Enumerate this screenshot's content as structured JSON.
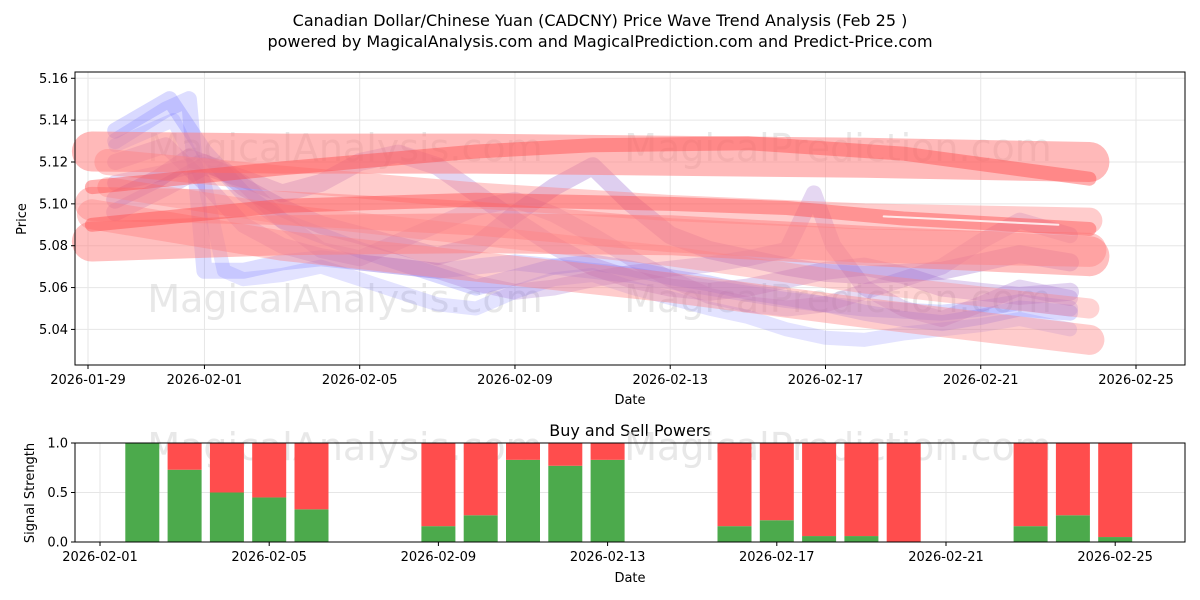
{
  "chart_data": [
    {
      "type": "line",
      "title": "Canadian Dollar/Chinese Yuan (CADCNY) Price Wave Trend Analysis (Feb 25 )",
      "subtitle": "powered by MagicalAnalysis.com and MagicalPrediction.com and Predict-Price.com",
      "xlabel": "Date",
      "ylabel": "Price",
      "xlim": [
        "2026-01-29",
        "2026-02-25"
      ],
      "ylim": [
        5.023,
        5.163
      ],
      "x_ticks": [
        "2026-01-29",
        "2026-02-01",
        "2026-02-05",
        "2026-02-09",
        "2026-02-13",
        "2026-02-17",
        "2026-02-21",
        "2026-02-25"
      ],
      "y_ticks": [
        "5.04",
        "5.06",
        "5.08",
        "5.10",
        "5.12",
        "5.14",
        "5.16"
      ],
      "grid": true,
      "watermarks": [
        "MagicalAnalysis.com",
        "MagicalPrediction.com",
        "MagicalAnalysis.com",
        "MagicalPrediction.com"
      ],
      "series": [
        {
          "name": "blue-wave-1",
          "color": "#6666ff",
          "width": 16,
          "opacity": 0.25,
          "x": [
            0.7,
            2.1,
            3.0,
            4.0,
            5.0,
            6.0,
            7.0,
            8.0,
            9.0,
            10.0,
            11.0,
            12.0,
            13.0,
            14.0,
            15.0,
            16.0,
            17.0,
            18.0,
            19.0,
            20.0,
            21.0,
            22.0,
            23.0,
            24.0,
            25.3
          ],
          "y": [
            5.135,
            5.15,
            5.125,
            5.105,
            5.092,
            5.085,
            5.078,
            5.072,
            5.066,
            5.06,
            5.065,
            5.07,
            5.072,
            5.069,
            5.065,
            5.062,
            5.058,
            5.055,
            5.052,
            5.048,
            5.045,
            5.043,
            5.046,
            5.05,
            5.048
          ]
        },
        {
          "name": "blue-wave-2",
          "color": "#6666ff",
          "width": 16,
          "opacity": 0.22,
          "x": [
            0.7,
            2.0,
            2.6,
            3.0,
            4.0,
            5.0,
            6.0,
            7.0,
            8.0,
            9.0,
            10.0,
            11.0,
            12.0,
            13.0,
            14.0,
            15.0,
            16.0,
            17.0,
            18.0,
            19.0,
            20.0,
            21.0,
            22.0,
            23.0,
            24.0,
            25.3
          ],
          "y": [
            5.13,
            5.145,
            5.15,
            5.068,
            5.068,
            5.072,
            5.074,
            5.072,
            5.07,
            5.068,
            5.07,
            5.072,
            5.07,
            5.068,
            5.066,
            5.063,
            5.06,
            5.057,
            5.054,
            5.052,
            5.05,
            5.049,
            5.048,
            5.05,
            5.053,
            5.05
          ]
        },
        {
          "name": "blue-wave-3",
          "color": "#6666ff",
          "width": 14,
          "opacity": 0.18,
          "x": [
            0.7,
            2.2,
            3.0,
            3.5,
            4.0,
            5.0,
            6.0,
            7.0,
            8.0,
            9.0,
            10.0,
            11.0,
            12.0,
            13.0,
            14.0,
            15.0,
            16.0,
            17.0,
            18.0,
            19.0,
            20.0,
            21.0,
            22.0,
            23.0,
            24.0,
            25.3
          ],
          "y": [
            5.128,
            5.14,
            5.11,
            5.068,
            5.064,
            5.066,
            5.07,
            5.064,
            5.058,
            5.052,
            5.05,
            5.058,
            5.064,
            5.066,
            5.06,
            5.055,
            5.05,
            5.046,
            5.04,
            5.036,
            5.035,
            5.038,
            5.04,
            5.042,
            5.045,
            5.04
          ]
        },
        {
          "name": "purple-wave-1",
          "color": "#9966cc",
          "width": 18,
          "opacity": 0.32,
          "x": [
            0.7,
            1.8,
            2.6,
            3.5,
            4.0,
            5.0,
            6.0,
            7.0,
            8.0,
            9.0,
            10.0,
            11.0,
            12.0,
            13.0,
            14.0,
            15.0,
            16.0,
            17.0,
            18.0,
            19.0,
            20.0,
            21.0,
            22.0,
            23.0,
            24.0,
            25.3
          ],
          "y": [
            5.102,
            5.112,
            5.122,
            5.116,
            5.108,
            5.098,
            5.09,
            5.085,
            5.08,
            5.075,
            5.08,
            5.095,
            5.108,
            5.118,
            5.1,
            5.085,
            5.078,
            5.074,
            5.07,
            5.067,
            5.066,
            5.067,
            5.068,
            5.072,
            5.076,
            5.072
          ]
        },
        {
          "name": "purple-wave-2",
          "color": "#9966cc",
          "width": 18,
          "opacity": 0.28,
          "x": [
            0.7,
            2.0,
            3.0,
            4.0,
            5.0,
            6.0,
            7.0,
            8.0,
            9.0,
            10.0,
            11.0,
            12.0,
            13.0,
            14.0,
            15.0,
            16.0,
            17.0,
            18.0,
            19.0,
            20.0,
            21.0,
            22.0,
            23.0,
            24.0,
            25.3
          ],
          "y": [
            5.096,
            5.108,
            5.118,
            5.112,
            5.105,
            5.11,
            5.12,
            5.124,
            5.118,
            5.105,
            5.092,
            5.08,
            5.07,
            5.064,
            5.06,
            5.058,
            5.06,
            5.064,
            5.068,
            5.07,
            5.066,
            5.06,
            5.058,
            5.056,
            5.058
          ]
        },
        {
          "name": "purple-wave-3",
          "color": "#9966cc",
          "width": 16,
          "opacity": 0.26,
          "x": [
            0.7,
            2.0,
            3.0,
            4.0,
            5.0,
            6.0,
            7.0,
            8.0,
            9.0,
            10.0,
            11.0,
            12.0,
            13.0,
            14.0,
            15.0,
            16.0,
            17.0,
            18.0,
            18.7,
            19.2,
            20.0,
            21.0,
            22.0,
            23.0,
            24.0,
            25.3
          ],
          "y": [
            5.12,
            5.128,
            5.11,
            5.09,
            5.08,
            5.075,
            5.072,
            5.07,
            5.068,
            5.062,
            5.058,
            5.06,
            5.064,
            5.067,
            5.069,
            5.071,
            5.074,
            5.078,
            5.105,
            5.08,
            5.06,
            5.05,
            5.045,
            5.052,
            5.06,
            5.055
          ]
        },
        {
          "name": "purple-wave-4",
          "color": "#9966cc",
          "width": 16,
          "opacity": 0.24,
          "x": [
            0.7,
            2.0,
            3.0,
            4.0,
            5.0,
            6.0,
            7.0,
            8.0,
            9.0,
            10.0,
            11.0,
            12.0,
            13.0,
            14.0,
            15.0,
            16.0,
            17.0,
            18.0,
            19.0,
            20.0,
            21.0,
            22.0,
            23.0,
            24.0,
            25.3
          ],
          "y": [
            5.11,
            5.115,
            5.12,
            5.11,
            5.092,
            5.078,
            5.074,
            5.082,
            5.09,
            5.098,
            5.102,
            5.095,
            5.085,
            5.074,
            5.064,
            5.056,
            5.052,
            5.05,
            5.052,
            5.058,
            5.064,
            5.07,
            5.082,
            5.092,
            5.085
          ]
        },
        {
          "name": "red-band-1",
          "color": "#ff8080",
          "width": 40,
          "opacity": 0.55,
          "x": [
            0.1,
            5.0,
            10.0,
            15.0,
            20.0,
            25.8
          ],
          "y": [
            5.125,
            5.124,
            5.124,
            5.123,
            5.122,
            5.12
          ]
        },
        {
          "name": "red-band-2",
          "color": "#ff8080",
          "width": 40,
          "opacity": 0.5,
          "x": [
            0.1,
            5.0,
            10.0,
            15.0,
            20.0,
            25.8
          ],
          "y": [
            5.082,
            5.085,
            5.086,
            5.085,
            5.08,
            5.075
          ]
        },
        {
          "name": "red-band-3",
          "color": "#ff8080",
          "width": 34,
          "opacity": 0.45,
          "x": [
            0.1,
            5.0,
            10.0,
            15.0,
            20.0,
            25.8
          ],
          "y": [
            5.1,
            5.098,
            5.093,
            5.085,
            5.08,
            5.078
          ]
        },
        {
          "name": "red-band-4",
          "color": "#ff8080",
          "width": 30,
          "opacity": 0.4,
          "x": [
            0.1,
            5.0,
            10.0,
            15.0,
            20.0,
            25.8
          ],
          "y": [
            5.095,
            5.08,
            5.07,
            5.06,
            5.048,
            5.035
          ]
        },
        {
          "name": "red-band-5",
          "color": "#ff8080",
          "width": 26,
          "opacity": 0.4,
          "x": [
            0.5,
            5.0,
            10.0,
            15.0,
            20.0,
            25.8
          ],
          "y": [
            5.12,
            5.112,
            5.104,
            5.098,
            5.094,
            5.092
          ]
        },
        {
          "name": "red-band-6",
          "color": "#ff8080",
          "width": 20,
          "opacity": 0.35,
          "x": [
            0.5,
            5.0,
            10.0,
            15.0,
            20.0,
            25.8
          ],
          "y": [
            5.108,
            5.095,
            5.085,
            5.075,
            5.062,
            5.05
          ]
        },
        {
          "name": "red-core-1",
          "color": "#ff4d4d",
          "width": 14,
          "opacity": 0.45,
          "x": [
            0.1,
            5.0,
            10.0,
            13.0,
            17.0,
            21.0,
            25.8
          ],
          "y": [
            5.108,
            5.117,
            5.125,
            5.128,
            5.129,
            5.124,
            5.112
          ]
        },
        {
          "name": "red-core-2",
          "color": "#ff4d4d",
          "width": 14,
          "opacity": 0.45,
          "x": [
            0.1,
            5.0,
            10.0,
            15.0,
            18.0,
            21.0,
            25.8
          ],
          "y": [
            5.09,
            5.099,
            5.102,
            5.1,
            5.098,
            5.093,
            5.088
          ]
        },
        {
          "name": "white-line",
          "color": "#ffffff",
          "width": 2,
          "opacity": 0.8,
          "x": [
            20.5,
            25.0
          ],
          "y": [
            5.094,
            5.09
          ]
        }
      ]
    },
    {
      "type": "bar",
      "title": "Buy and Sell Powers",
      "xlabel": "Date",
      "ylabel": "Signal Strength",
      "ylim": [
        0,
        1.0
      ],
      "y_ticks": [
        "0.0",
        "0.5",
        "1.0"
      ],
      "x_ticks": [
        "2026-02-01",
        "2026-02-05",
        "2026-02-09",
        "2026-02-13",
        "2026-02-17",
        "2026-02-21",
        "2026-02-25"
      ],
      "grid": true,
      "buy_color": "#4caa4c",
      "sell_color": "#ff4d4d",
      "categories": [
        "2026-02-02",
        "2026-02-03",
        "2026-02-04",
        "2026-02-05",
        "2026-02-06",
        "2026-02-09",
        "2026-02-10",
        "2026-02-11",
        "2026-02-12",
        "2026-02-13",
        "2026-02-16",
        "2026-02-17",
        "2026-02-18",
        "2026-02-19",
        "2026-02-20",
        "2026-02-23",
        "2026-02-24",
        "2026-02-25"
      ],
      "day_index": [
        1,
        2,
        3,
        4,
        5,
        8,
        9,
        10,
        11,
        12,
        15,
        16,
        17,
        18,
        19,
        22,
        23,
        24
      ],
      "buy": [
        1.0,
        0.73,
        0.5,
        0.45,
        0.33,
        0.16,
        0.27,
        0.83,
        0.77,
        0.83,
        0.16,
        0.22,
        0.06,
        0.06,
        0.0,
        0.16,
        0.27,
        0.05
      ],
      "sell": [
        0.0,
        0.27,
        0.5,
        0.55,
        0.67,
        0.84,
        0.73,
        0.17,
        0.23,
        0.17,
        0.84,
        0.78,
        0.94,
        0.94,
        1.0,
        0.84,
        0.73,
        0.95
      ]
    }
  ]
}
